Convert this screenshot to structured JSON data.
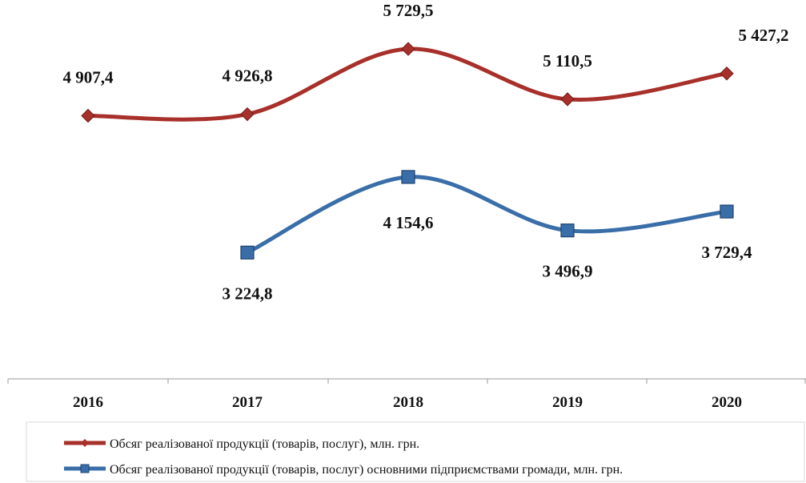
{
  "chart_data": {
    "type": "line",
    "categories": [
      "2016",
      "2017",
      "2018",
      "2019",
      "2020"
    ],
    "series": [
      {
        "name": "Обсяг реалізованої продукції (товарів, послуг), млн. грн.",
        "color": "#A8302B",
        "marker": "diamond",
        "values": [
          4907.4,
          4926.8,
          5729.5,
          5110.5,
          5427.2
        ],
        "labels": [
          "4 907,4",
          "4 926,8",
          "5 729,5",
          "5 110,5",
          "5 427,2"
        ]
      },
      {
        "name": "Обсяг реалізованої продукції (товарів, послуг) основними підприємствами громади, млн. грн.",
        "color": "#3A6EA8",
        "marker": "square",
        "values": [
          null,
          3224.8,
          4154.6,
          3496.9,
          3729.4
        ],
        "labels": [
          null,
          "3 224,8",
          "4 154,6",
          "3 496,9",
          "3 729,4"
        ]
      }
    ],
    "legend_position": "bottom",
    "grid": false
  }
}
